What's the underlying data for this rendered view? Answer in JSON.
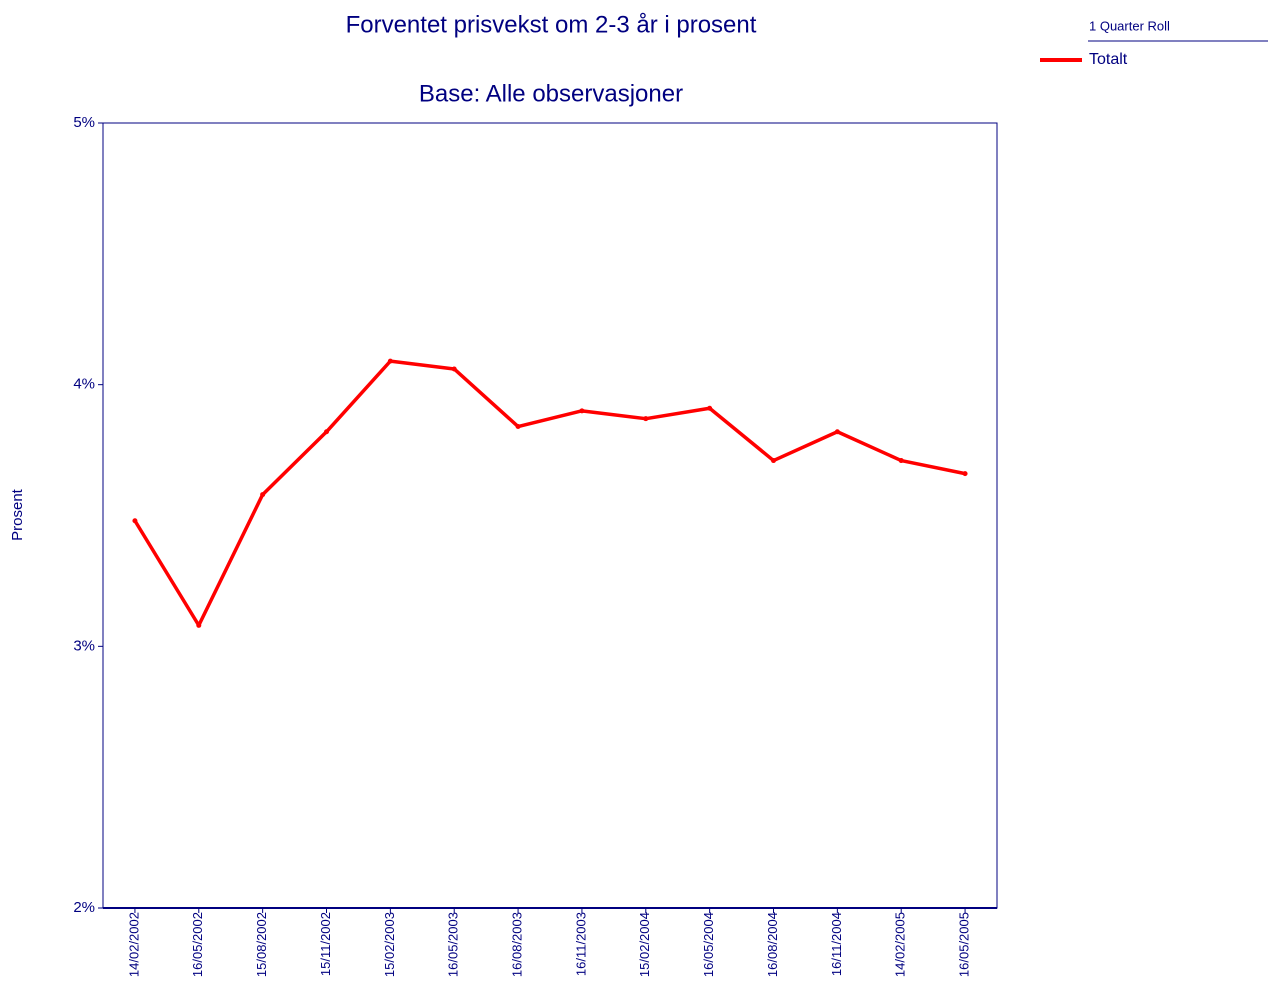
{
  "chart_data": {
    "type": "line",
    "title": "Forventet prisvekst om 2-3 år i prosent",
    "subtitle": "Base: Alle observasjoner",
    "y_label": "Prosent",
    "legend_title": "1 Quarter Roll",
    "legend_position": "top-right",
    "categories": [
      "14/02/2002",
      "16/05/2002",
      "15/08/2002",
      "15/11/2002",
      "15/02/2003",
      "16/05/2003",
      "16/08/2003",
      "16/11/2003",
      "15/02/2004",
      "16/05/2004",
      "16/08/2004",
      "16/11/2004",
      "14/02/2005",
      "16/05/2005"
    ],
    "series": [
      {
        "name": "Totalt",
        "color": "#ff0000",
        "values": [
          3.48,
          3.08,
          3.58,
          3.82,
          4.09,
          4.06,
          3.84,
          3.9,
          3.87,
          3.91,
          3.71,
          3.82,
          3.71,
          3.66
        ]
      }
    ],
    "ylim": [
      2,
      5
    ],
    "yticks": [
      {
        "value": 2,
        "label": "2%"
      },
      {
        "value": 3,
        "label": "3%"
      },
      {
        "value": 4,
        "label": "4%"
      },
      {
        "value": 5,
        "label": "5%"
      }
    ],
    "grid": false
  }
}
